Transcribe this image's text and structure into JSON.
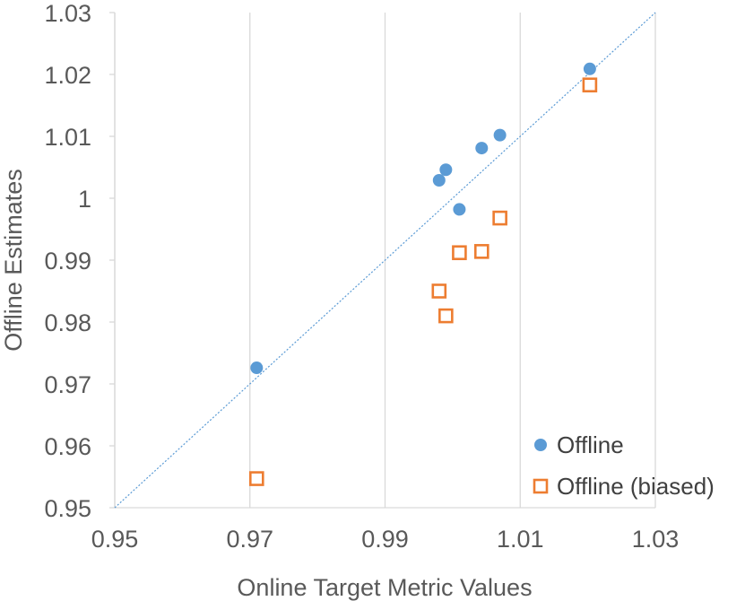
{
  "chart_data": {
    "type": "scatter",
    "title": "",
    "xlabel": "Online Target Metric Values",
    "ylabel": "Offline Estimates",
    "xlim": [
      0.95,
      1.03
    ],
    "ylim": [
      0.95,
      1.03
    ],
    "x_ticks": [
      0.95,
      0.97,
      0.99,
      1.01,
      1.03
    ],
    "x_tick_labels": [
      "0.95",
      "0.97",
      "0.99",
      "1.01",
      "1.03"
    ],
    "y_ticks": [
      0.95,
      0.96,
      0.97,
      0.98,
      0.99,
      1.0,
      1.01,
      1.02,
      1.03
    ],
    "y_tick_labels": [
      "0.95",
      "0.96",
      "0.97",
      "0.98",
      "0.99",
      "1",
      "1.01",
      "1.02",
      "1.03"
    ],
    "grid": "vertical",
    "legend_position": "bottom-right",
    "reference_line": {
      "type": "y=x",
      "style": "dotted",
      "color": "#5B9BD5"
    },
    "series": [
      {
        "name": "Offline",
        "marker": "filled-circle",
        "color": "#5B9BD5",
        "points": [
          {
            "x": 0.971,
            "y": 0.9726
          },
          {
            "x": 0.998,
            "y": 1.0029
          },
          {
            "x": 0.999,
            "y": 1.0046
          },
          {
            "x": 1.001,
            "y": 0.9982
          },
          {
            "x": 1.0043,
            "y": 1.0081
          },
          {
            "x": 1.007,
            "y": 1.0102
          },
          {
            "x": 1.0203,
            "y": 1.0209
          }
        ]
      },
      {
        "name": "Offline (biased)",
        "marker": "hollow-square",
        "color": "#ED7D31",
        "points": [
          {
            "x": 0.971,
            "y": 0.9547
          },
          {
            "x": 0.998,
            "y": 0.985
          },
          {
            "x": 0.999,
            "y": 0.981
          },
          {
            "x": 1.001,
            "y": 0.9912
          },
          {
            "x": 1.0043,
            "y": 0.9914
          },
          {
            "x": 1.007,
            "y": 0.9968
          },
          {
            "x": 1.0203,
            "y": 1.0183
          }
        ]
      }
    ]
  }
}
